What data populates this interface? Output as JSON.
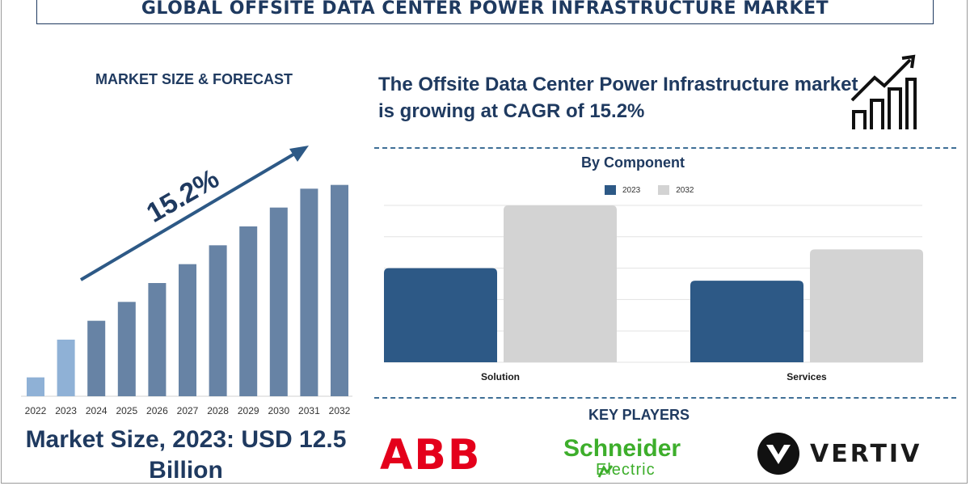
{
  "header": {
    "title": "GLOBAL OFFSITE DATA CENTER POWER INFRASTRUCTURE MARKET"
  },
  "left_panel": {
    "heading": "MARKET SIZE & FORECAST",
    "growth_label": "15.2%",
    "market_size": "Market Size, 2023: USD 12.5 Billion"
  },
  "right_panel": {
    "cagr_text": "The Offsite Data Center Power Infrastructure market is growing at CAGR of 15.2%",
    "component_title": "By Component",
    "key_players_title": "KEY PLAYERS"
  },
  "logos": {
    "abb": {
      "text": "ABB",
      "color": "#e4001b"
    },
    "schneider": {
      "line1": "Schneider",
      "line2": "Electric",
      "color": "#3dae2b"
    },
    "vertiv": {
      "text": "VERTIV",
      "color": "#1a1a1a"
    }
  },
  "icons": [
    "growth-chart-icon",
    "arrow-up-right-icon",
    "vertiv-v-icon",
    "schneider-mark-icon"
  ],
  "colors": {
    "navy": "#1f3a60",
    "bar_steel": "#6783a5",
    "bar_light": "#8fb1d6",
    "series_2023": "#2d5986",
    "series_2032": "#d3d3d3"
  },
  "chart_data": [
    {
      "type": "bar",
      "categories": [
        "2022",
        "2023",
        "2024",
        "2025",
        "2026",
        "2027",
        "2028",
        "2029",
        "2030",
        "2031",
        "2032"
      ],
      "values": [
        1.0,
        3.0,
        4.0,
        5.0,
        6.0,
        7.0,
        8.0,
        9.0,
        10.0,
        11.0,
        11.2
      ],
      "highlight": [
        "2022",
        "2023"
      ],
      "annotation": "15.2%",
      "ylim": [
        0,
        12
      ],
      "grid": false
    },
    {
      "type": "bar",
      "title": "By Component",
      "categories": [
        "Solution",
        "Services"
      ],
      "series": [
        {
          "name": "2023",
          "values": [
            3.0,
            2.6
          ]
        },
        {
          "name": "2032",
          "values": [
            5.0,
            3.6
          ]
        }
      ],
      "ylim": [
        0,
        5
      ],
      "grid": true,
      "legend": "top-center"
    }
  ]
}
